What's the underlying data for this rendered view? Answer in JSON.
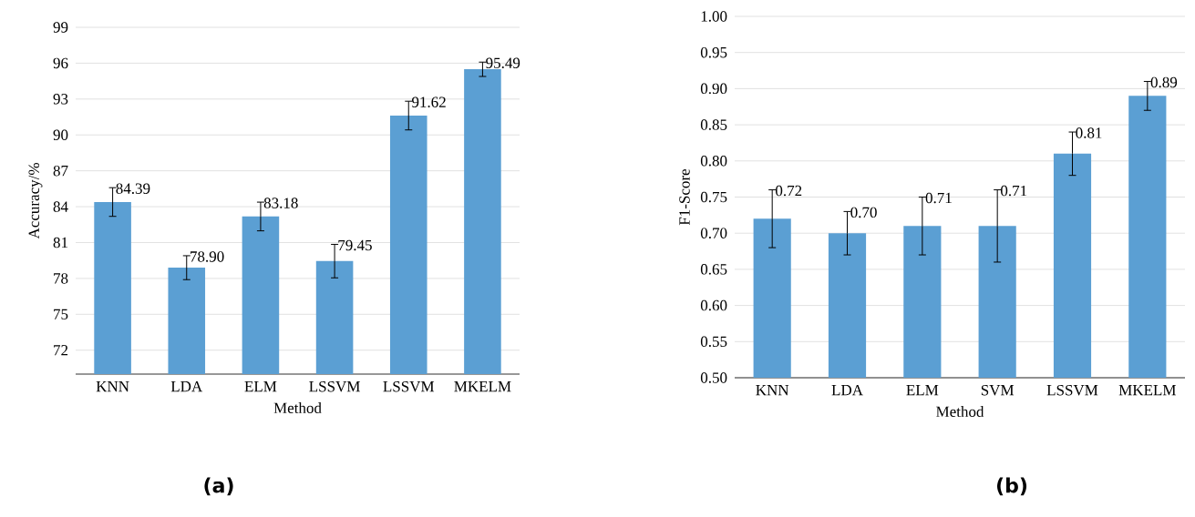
{
  "chart_data": [
    {
      "type": "bar",
      "xlabel": "Method",
      "ylabel": "Accuracy/%",
      "categories": [
        "KNN",
        "LDA",
        "ELM",
        "LSSVM",
        "LSSVM",
        "MKELM"
      ],
      "values": [
        84.39,
        78.9,
        83.18,
        79.45,
        91.62,
        95.49
      ],
      "errors": [
        1.2,
        1.0,
        1.2,
        1.4,
        1.2,
        0.6
      ],
      "value_labels": [
        "84.39",
        "78.90",
        "83.18",
        "79.45",
        "91.62",
        "95.49"
      ],
      "color": "#5b9fd3",
      "ylim": [
        70,
        99
      ],
      "yticks": [
        72,
        75,
        78,
        81,
        84,
        87,
        90,
        93,
        96,
        99
      ],
      "grid": "y",
      "annotations": [
        "(a)"
      ]
    },
    {
      "type": "bar",
      "xlabel": "Method",
      "ylabel": "F1-Score",
      "categories": [
        "KNN",
        "LDA",
        "ELM",
        "SVM",
        "LSSVM",
        "MKELM"
      ],
      "values": [
        0.72,
        0.7,
        0.71,
        0.71,
        0.81,
        0.89
      ],
      "errors": [
        0.04,
        0.03,
        0.04,
        0.05,
        0.03,
        0.02
      ],
      "value_labels": [
        "0.72",
        "0.70",
        "0.71",
        "0.71",
        "0.81",
        "0.89"
      ],
      "color": "#5b9fd3",
      "ylim": [
        0.5,
        1.0
      ],
      "yticks": [
        {
          "value": 0.5,
          "label": "0.50"
        },
        {
          "value": 0.55,
          "label": "0.55"
        },
        {
          "value": 0.6,
          "label": "0.60"
        },
        {
          "value": 0.65,
          "label": "0.65"
        },
        {
          "value": 0.7,
          "label": "0.70"
        },
        {
          "value": 0.75,
          "label": "0.75"
        },
        {
          "value": 0.8,
          "label": "0.80"
        },
        {
          "value": 0.85,
          "label": "0.85"
        },
        {
          "value": 0.9,
          "label": "0.90"
        },
        {
          "value": 0.95,
          "label": "0.95"
        },
        {
          "value": 1.0,
          "label": "1.00"
        }
      ],
      "grid": "y",
      "annotations": [
        "(b)"
      ]
    }
  ]
}
